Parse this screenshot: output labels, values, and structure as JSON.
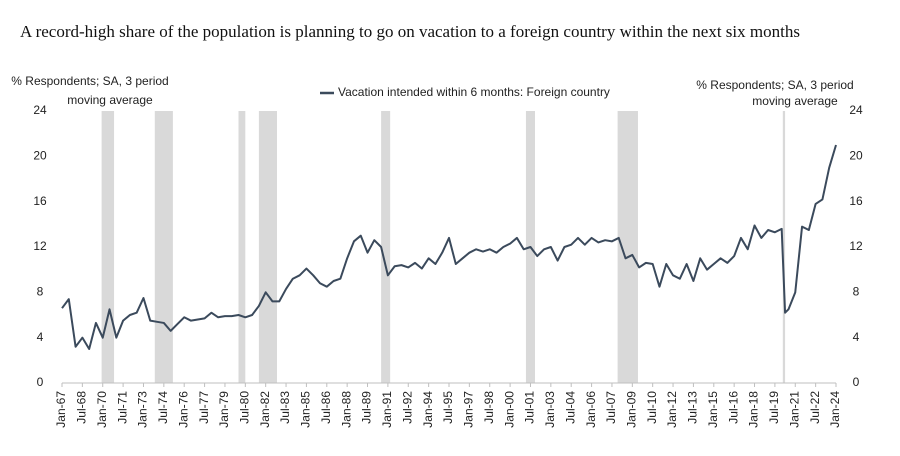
{
  "chart_data": {
    "type": "line",
    "title": "A record-high share of the population is planning to go on vacation to a foreign country within the next six months",
    "y_label": [
      "% Respondents; SA, 3 period",
      "moving average"
    ],
    "y2_label": [
      "% Respondents; SA, 3 period",
      "moving average"
    ],
    "xlim": [
      "1967-01",
      "2024-01"
    ],
    "ylim": [
      0,
      24
    ],
    "yticks": [
      0,
      4,
      8,
      12,
      16,
      20,
      24
    ],
    "y2lim": [
      0,
      24
    ],
    "y2ticks": [
      0,
      4,
      8,
      12,
      16,
      20,
      24
    ],
    "xticks": [
      {
        "value": "1967-01",
        "label": "Jan-67"
      },
      {
        "value": "1968-07",
        "label": "Jul-68"
      },
      {
        "value": "1970-01",
        "label": "Jan-70"
      },
      {
        "value": "1971-07",
        "label": "Jul-71"
      },
      {
        "value": "1973-01",
        "label": "Jan-73"
      },
      {
        "value": "1974-07",
        "label": "Jul-74"
      },
      {
        "value": "1976-01",
        "label": "Jan-76"
      },
      {
        "value": "1977-07",
        "label": "Jul-77"
      },
      {
        "value": "1979-01",
        "label": "Jan-79"
      },
      {
        "value": "1980-07",
        "label": "Jul-80"
      },
      {
        "value": "1982-01",
        "label": "Jan-82"
      },
      {
        "value": "1983-07",
        "label": "Jul-83"
      },
      {
        "value": "1985-01",
        "label": "Jan-85"
      },
      {
        "value": "1986-07",
        "label": "Jul-86"
      },
      {
        "value": "1988-01",
        "label": "Jan-88"
      },
      {
        "value": "1989-07",
        "label": "Jul-89"
      },
      {
        "value": "1991-01",
        "label": "Jan-91"
      },
      {
        "value": "1992-07",
        "label": "Jul-92"
      },
      {
        "value": "1994-01",
        "label": "Jan-94"
      },
      {
        "value": "1995-07",
        "label": "Jul-95"
      },
      {
        "value": "1997-01",
        "label": "Jan-97"
      },
      {
        "value": "1998-07",
        "label": "Jul-98"
      },
      {
        "value": "2000-01",
        "label": "Jan-00"
      },
      {
        "value": "2001-07",
        "label": "Jul-01"
      },
      {
        "value": "2003-01",
        "label": "Jan-03"
      },
      {
        "value": "2004-07",
        "label": "Jul-04"
      },
      {
        "value": "2006-01",
        "label": "Jan-06"
      },
      {
        "value": "2007-07",
        "label": "Jul-07"
      },
      {
        "value": "2009-01",
        "label": "Jan-09"
      },
      {
        "value": "2010-07",
        "label": "Jul-10"
      },
      {
        "value": "2012-01",
        "label": "Jan-12"
      },
      {
        "value": "2013-07",
        "label": "Jul-13"
      },
      {
        "value": "2015-01",
        "label": "Jan-15"
      },
      {
        "value": "2016-07",
        "label": "Jul-16"
      },
      {
        "value": "2018-01",
        "label": "Jan-18"
      },
      {
        "value": "2019-07",
        "label": "Jul-19"
      },
      {
        "value": "2021-01",
        "label": "Jan-21"
      },
      {
        "value": "2022-07",
        "label": "Jul-22"
      },
      {
        "value": "2024-01",
        "label": "Jan-24"
      }
    ],
    "shaded_periods": [
      [
        "1969-12",
        "1970-11"
      ],
      [
        "1973-11",
        "1975-03"
      ],
      [
        "1980-01",
        "1980-07"
      ],
      [
        "1981-07",
        "1982-11"
      ],
      [
        "1990-07",
        "1991-03"
      ],
      [
        "2001-03",
        "2001-11"
      ],
      [
        "2007-12",
        "2009-06"
      ],
      [
        "2020-02",
        "2020-04"
      ]
    ],
    "shade_color": "#d9d9d9",
    "legend": "top",
    "x": [
      "1967-01",
      "1967-07",
      "1968-01",
      "1968-07",
      "1969-01",
      "1969-07",
      "1970-01",
      "1970-07",
      "1971-01",
      "1971-07",
      "1972-01",
      "1972-07",
      "1973-01",
      "1973-07",
      "1974-01",
      "1974-07",
      "1975-01",
      "1975-07",
      "1976-01",
      "1976-07",
      "1977-01",
      "1977-07",
      "1978-01",
      "1978-07",
      "1979-01",
      "1979-07",
      "1980-01",
      "1980-07",
      "1981-01",
      "1981-07",
      "1982-01",
      "1982-07",
      "1983-01",
      "1983-07",
      "1984-01",
      "1984-07",
      "1985-01",
      "1985-07",
      "1986-01",
      "1986-07",
      "1987-01",
      "1987-07",
      "1988-01",
      "1988-07",
      "1989-01",
      "1989-07",
      "1990-01",
      "1990-07",
      "1991-01",
      "1991-07",
      "1992-01",
      "1992-07",
      "1993-01",
      "1993-07",
      "1994-01",
      "1994-07",
      "1995-01",
      "1995-07",
      "1996-01",
      "1996-07",
      "1997-01",
      "1997-07",
      "1998-01",
      "1998-07",
      "1999-01",
      "1999-07",
      "2000-01",
      "2000-07",
      "2001-01",
      "2001-07",
      "2002-01",
      "2002-07",
      "2003-01",
      "2003-07",
      "2004-01",
      "2004-07",
      "2005-01",
      "2005-07",
      "2006-01",
      "2006-07",
      "2007-01",
      "2007-07",
      "2008-01",
      "2008-07",
      "2009-01",
      "2009-07",
      "2010-01",
      "2010-07",
      "2011-01",
      "2011-07",
      "2012-01",
      "2012-07",
      "2013-01",
      "2013-07",
      "2014-01",
      "2014-07",
      "2015-01",
      "2015-07",
      "2016-01",
      "2016-07",
      "2017-01",
      "2017-07",
      "2018-01",
      "2018-07",
      "2019-01",
      "2019-07",
      "2020-01",
      "2020-04",
      "2020-07",
      "2021-01",
      "2021-07",
      "2022-01",
      "2022-07",
      "2023-01",
      "2023-07",
      "2024-01"
    ],
    "series": [
      {
        "name": "Vacation intended within 6 months: Foreign country",
        "color": "#3b4a5c",
        "values": [
          6.6,
          7.4,
          3.2,
          4,
          3,
          5.3,
          4,
          6.5,
          4,
          5.5,
          6,
          6.2,
          7.5,
          5.5,
          5.4,
          5.3,
          4.6,
          5.2,
          5.8,
          5.5,
          5.6,
          5.7,
          6.2,
          5.8,
          5.9,
          5.9,
          6,
          5.8,
          6,
          6.8,
          8,
          7.2,
          7.2,
          8.3,
          9.2,
          9.5,
          10.1,
          9.5,
          8.8,
          8.5,
          9,
          9.2,
          11,
          12.5,
          13,
          11.5,
          12.6,
          12,
          9.5,
          10.3,
          10.4,
          10.2,
          10.6,
          10.1,
          11,
          10.5,
          11.5,
          12.8,
          10.5,
          11,
          11.5,
          11.8,
          11.6,
          11.8,
          11.5,
          12,
          12.3,
          12.8,
          11.8,
          12,
          11.2,
          11.8,
          12,
          10.8,
          12,
          12.2,
          12.8,
          12.2,
          12.8,
          12.4,
          12.6,
          12.5,
          12.8,
          11,
          11.3,
          10.2,
          10.6,
          10.5,
          8.5,
          10.5,
          9.5,
          9.2,
          10.5,
          9,
          11,
          10,
          10.5,
          11,
          10.6,
          11.2,
          12.8,
          11.8,
          13.9,
          12.8,
          13.5,
          13.3,
          13.6,
          6.2,
          6.5,
          8,
          13.8,
          13.5,
          15.8,
          16.2,
          19,
          21
        ]
      }
    ]
  }
}
